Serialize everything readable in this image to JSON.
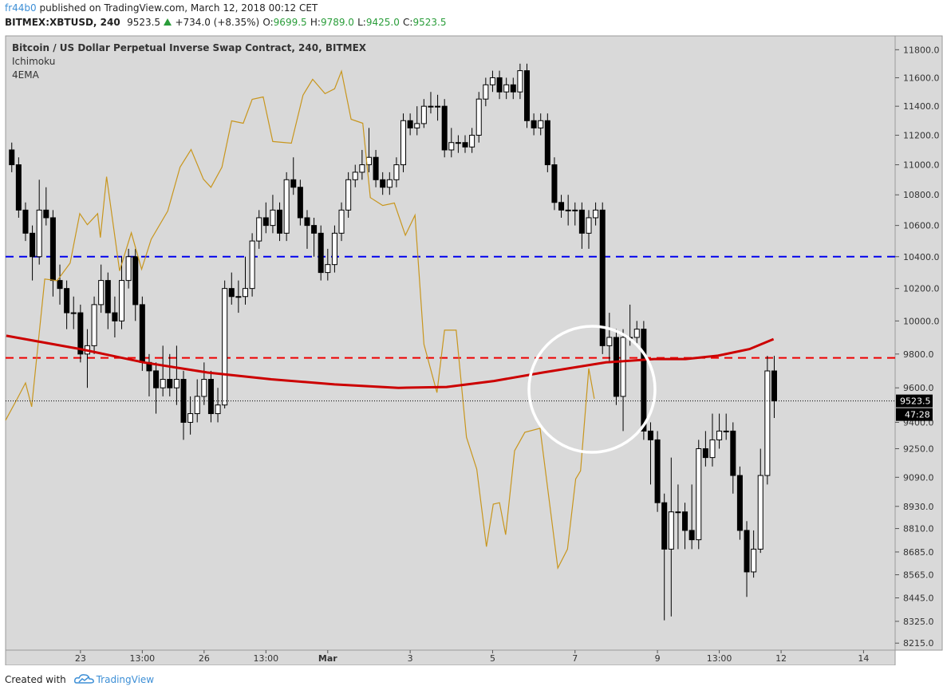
{
  "header": {
    "author": "fr44b0",
    "published": "published on TradingView.com, March 12, 2018 00:12 CET",
    "symbol": "BITMEX:XBTUSD, 240",
    "last": "9523.5",
    "change": "+734.0 (+8.35%)",
    "ohlc": [
      {
        "key": "O:",
        "value": "9699.5"
      },
      {
        "key": "H:",
        "value": "9789.0"
      },
      {
        "key": "L:",
        "value": "9425.0"
      },
      {
        "key": "C:",
        "value": "9523.5"
      }
    ]
  },
  "chart_data": {
    "type": "candlestick",
    "title": "Bitcoin / US Dollar Perpetual Inverse Swap Contract, 240, BITMEX",
    "x": [
      0,
      1,
      2,
      3,
      4,
      5,
      6,
      7,
      8,
      9,
      10,
      11,
      12,
      13,
      14,
      15,
      16,
      17,
      18,
      19,
      20,
      21,
      22,
      23,
      24,
      25,
      26,
      27,
      28,
      29,
      30,
      31,
      32,
      33,
      34,
      35,
      36,
      37,
      38,
      39,
      40,
      41,
      42,
      43,
      44,
      45,
      46,
      47,
      48,
      49,
      50,
      51,
      52,
      53,
      54,
      55,
      56,
      57,
      58,
      59,
      60,
      61,
      62,
      63,
      64,
      65,
      66,
      67,
      68,
      69,
      70,
      71,
      72,
      73,
      74,
      75,
      76,
      77,
      78,
      79,
      80,
      81,
      82,
      83,
      84,
      85,
      86,
      87,
      88,
      89,
      90,
      91,
      92,
      93,
      94,
      95,
      96,
      97,
      98,
      99,
      100,
      101,
      102,
      103,
      104,
      105,
      106,
      107,
      108,
      109,
      110,
      111
    ],
    "open": [
      11100,
      11000,
      10700,
      10550,
      10400,
      10700,
      10650,
      10250,
      10200,
      10050,
      10050,
      9800,
      9850,
      10100,
      10250,
      10050,
      10000,
      10250,
      10400,
      10100,
      9750,
      9700,
      9600,
      9650,
      9600,
      9650,
      9400,
      9450,
      9550,
      9650,
      9450,
      9500,
      10200,
      10150,
      10150,
      10200,
      10500,
      10650,
      10600,
      10700,
      10550,
      10900,
      10850,
      10650,
      10600,
      10550,
      10300,
      10350,
      10550,
      10700,
      10900,
      10950,
      11000,
      11050,
      10900,
      10850,
      10900,
      11000,
      11300,
      11250,
      11280,
      11400,
      11400,
      11400,
      11100,
      11150,
      11150,
      11120,
      11200,
      11450,
      11550,
      11600,
      11500,
      11550,
      11500,
      11650,
      11300,
      11250,
      11300,
      11000,
      10750,
      10700,
      10700,
      10700,
      10550,
      10650,
      10700,
      9850,
      9900,
      9550,
      9900,
      9900,
      9950,
      9350,
      9300,
      8950,
      8700,
      8900,
      8900,
      8800,
      8750,
      9250,
      9200,
      9300,
      9350,
      9350,
      9100,
      8800,
      8580,
      8700,
      9100,
      9699.5
    ],
    "high": [
      11150,
      11050,
      10750,
      10600,
      10900,
      10850,
      10700,
      10350,
      10250,
      10150,
      10100,
      9950,
      10150,
      10350,
      10300,
      10150,
      10400,
      10450,
      10450,
      10150,
      9800,
      9750,
      9850,
      9800,
      9850,
      9700,
      9550,
      9650,
      9750,
      9700,
      9600,
      10250,
      10300,
      10250,
      10400,
      10550,
      10700,
      10750,
      10800,
      10750,
      10950,
      11050,
      10900,
      10700,
      10650,
      10600,
      10450,
      10600,
      10750,
      10950,
      11000,
      11100,
      11250,
      11100,
      10950,
      10950,
      11050,
      11350,
      11350,
      11400,
      11450,
      11500,
      11480,
      11450,
      11250,
      11200,
      11200,
      11250,
      11500,
      11600,
      11650,
      11650,
      11600,
      11600,
      11700,
      11700,
      11350,
      11350,
      11350,
      11050,
      10800,
      10800,
      10750,
      10750,
      10700,
      10750,
      10750,
      10050,
      9950,
      9950,
      10100,
      10000,
      10000,
      9400,
      9350,
      9000,
      9200,
      9050,
      8950,
      9050,
      9300,
      9350,
      9450,
      9450,
      9450,
      9400,
      9150,
      8850,
      8800,
      9250,
      9789,
      9789
    ],
    "low": [
      10950,
      10650,
      10500,
      10250,
      10350,
      10600,
      10150,
      10100,
      9950,
      9950,
      9750,
      9600,
      9800,
      10050,
      9950,
      9900,
      9950,
      10200,
      10000,
      9700,
      9550,
      9450,
      9550,
      9550,
      9500,
      9300,
      9330,
      9400,
      9500,
      9400,
      9400,
      9480,
      10100,
      10050,
      10100,
      10150,
      10450,
      10550,
      10550,
      10500,
      10500,
      10800,
      10600,
      10450,
      10400,
      10250,
      10250,
      10300,
      10500,
      10650,
      10850,
      10900,
      10950,
      10850,
      10800,
      10800,
      10850,
      10950,
      11200,
      11200,
      11250,
      11350,
      11300,
      11050,
      11050,
      11080,
      11080,
      11080,
      11150,
      11400,
      11500,
      11450,
      11450,
      11450,
      11450,
      11250,
      11200,
      11200,
      10950,
      10700,
      10650,
      10600,
      10600,
      10450,
      10450,
      10600,
      9800,
      9750,
      9500,
      9350,
      9850,
      9850,
      9300,
      9050,
      8900,
      8330,
      8350,
      8700,
      8700,
      8700,
      8700,
      9150,
      9150,
      9250,
      9300,
      9000,
      8750,
      8450,
      8550,
      8680,
      9050,
      9425
    ],
    "close": [
      11000,
      10700,
      10550,
      10400,
      10700,
      10650,
      10250,
      10200,
      10050,
      10050,
      9800,
      9850,
      10100,
      10250,
      10050,
      10000,
      10250,
      10400,
      10100,
      9750,
      9700,
      9600,
      9650,
      9600,
      9650,
      9400,
      9450,
      9550,
      9650,
      9450,
      9500,
      10200,
      10150,
      10150,
      10200,
      10500,
      10650,
      10600,
      10700,
      10550,
      10900,
      10850,
      10650,
      10600,
      10550,
      10300,
      10350,
      10550,
      10700,
      10900,
      10950,
      11000,
      11050,
      10900,
      10850,
      10900,
      11000,
      11300,
      11250,
      11280,
      11400,
      11400,
      11400,
      11100,
      11150,
      11150,
      11120,
      11200,
      11450,
      11550,
      11600,
      11500,
      11550,
      11500,
      11650,
      11300,
      11250,
      11300,
      11000,
      10750,
      10700,
      10700,
      10700,
      10550,
      10650,
      10700,
      9850,
      9900,
      9550,
      9900,
      9900,
      9950,
      9350,
      9300,
      8950,
      8700,
      8900,
      8900,
      8800,
      8750,
      9250,
      9200,
      9300,
      9350,
      9350,
      9100,
      8800,
      8580,
      8700,
      9100,
      9699.5,
      9523.5
    ],
    "up_color": "#ffffff",
    "down_color": "#000000",
    "lines": [
      {
        "name": "Ichimoku",
        "color": "#c8961e",
        "width": 1.2,
        "x": [
          -0.9,
          0.8,
          2,
          2.9,
          4.8,
          6.6,
          8.5,
          9.9,
          11,
          12.5,
          12.9,
          13.8,
          15.7,
          17.4,
          18.9,
          20.3,
          22.7,
          24.5,
          26.1,
          27.9,
          29,
          30.6,
          32,
          33.7,
          35,
          36.6,
          38,
          40.7,
          42.4,
          43.8,
          45.6,
          47,
          48,
          49.4,
          51.1,
          52.2,
          54,
          55.7,
          57.3,
          58.7,
          60,
          61.9,
          63,
          64.7,
          66.2,
          67.7,
          69.1,
          70.1,
          71,
          71.9,
          73.2,
          74.7,
          76.9,
          79.5,
          80.9,
          82.1,
          82.8,
          84,
          84.8
        ],
        "values": [
          9412,
          9536,
          9629,
          9490,
          10259,
          10249,
          10360,
          10677,
          10605,
          10677,
          10522,
          10920,
          10310,
          10553,
          10320,
          10511,
          10693,
          10984,
          11103,
          10903,
          10850,
          10984,
          11299,
          11282,
          11448,
          11465,
          11157,
          11146,
          11477,
          11589,
          11488,
          11522,
          11646,
          11310,
          11282,
          10782,
          10730,
          10746,
          10537,
          10667,
          9858,
          9572,
          9944,
          9944,
          9315,
          9135,
          8713,
          8942,
          8950,
          8777,
          9238,
          9343,
          9366,
          8600,
          8700,
          9081,
          9126,
          9714,
          9536
        ]
      },
      {
        "name": "4EMA",
        "color": "#cc0000",
        "width": 3,
        "x": [
          -0.8,
          10,
          19.2,
          28.5,
          37.8,
          47,
          56.3,
          63.3,
          70.2,
          77.3,
          86.5,
          93.5,
          98.1,
          102.8,
          107.4,
          110.9
        ],
        "values": [
          9910,
          9830,
          9750,
          9690,
          9650,
          9620,
          9600,
          9605,
          9640,
          9690,
          9750,
          9770,
          9770,
          9790,
          9830,
          9890
        ]
      }
    ],
    "hlines": [
      {
        "value": 10400,
        "color": "#0000ee"
      },
      {
        "value": 9777,
        "color": "#ee0000"
      }
    ],
    "countdown": "47:28",
    "xlim": [
      -0.9,
      128.6
    ],
    "xticks": [
      {
        "value": 10,
        "label": "23"
      },
      {
        "value": 19,
        "label": "13:00"
      },
      {
        "value": 28,
        "label": "26"
      },
      {
        "value": 37,
        "label": "13:00"
      },
      {
        "value": 46,
        "label": "Mar"
      },
      {
        "value": 58,
        "label": "3"
      },
      {
        "value": 70,
        "label": "5"
      },
      {
        "value": 82,
        "label": "7"
      },
      {
        "value": 94,
        "label": "9"
      },
      {
        "value": 103,
        "label": "13:00"
      },
      {
        "value": 112,
        "label": "12"
      },
      {
        "value": 124,
        "label": "14"
      }
    ],
    "ylim": [
      8180,
      11900
    ],
    "log_y": true,
    "grid": false,
    "yticks": [
      {
        "value": 11800,
        "label": "11800.0"
      },
      {
        "value": 11600,
        "label": "11600.0"
      },
      {
        "value": 11400,
        "label": "11400.0"
      },
      {
        "value": 11200,
        "label": "11200.0"
      },
      {
        "value": 11000,
        "label": "11000.0"
      },
      {
        "value": 10800,
        "label": "10800.0"
      },
      {
        "value": 10600,
        "label": "10600.0"
      },
      {
        "value": 10400,
        "label": "10400.0"
      },
      {
        "value": 10200,
        "label": "10200.0"
      },
      {
        "value": 10000,
        "label": "10000.0"
      },
      {
        "value": 9800,
        "label": "9800.0"
      },
      {
        "value": 9600,
        "label": "9600.0"
      },
      {
        "value": 9400,
        "label": "9400.0"
      },
      {
        "value": 9250,
        "label": "9250.0"
      },
      {
        "value": 9090,
        "label": "9090.0"
      },
      {
        "value": 8930,
        "label": "8930.0"
      },
      {
        "value": 8810,
        "label": "8810.0"
      },
      {
        "value": 8685,
        "label": "8685.0"
      },
      {
        "value": 8565,
        "label": "8565.0"
      },
      {
        "value": 8445,
        "label": "8445.0"
      },
      {
        "value": 8325,
        "label": "8325.0"
      },
      {
        "value": 8215,
        "label": "8215.0"
      }
    ]
  },
  "footer": {
    "text": "Created with",
    "brand": "TradingView"
  }
}
